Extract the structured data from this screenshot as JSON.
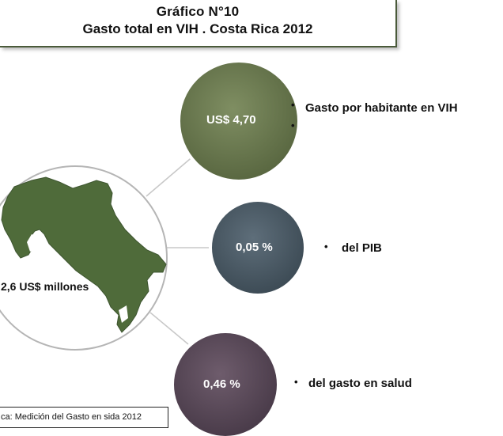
{
  "title": {
    "line1": "Gráfico N°10",
    "line2": "Gasto total en VIH . Costa Rica 2012"
  },
  "center": {
    "value": "2,6 US$ millones",
    "map": "costa-rica-map",
    "map_color": "#4f6b3a",
    "circle_border": "#b5b5b5"
  },
  "bubbles": [
    {
      "value": "US$   4,70",
      "description": "Gasto por habitante en VIH",
      "color": "#6b7a50"
    },
    {
      "value": "0,05  %",
      "description": "del PIB",
      "color": "#4a5a66"
    },
    {
      "value": "0,46 %",
      "description": "del gasto en salud",
      "color": "#5a4a58"
    }
  ],
  "source": "ca:  Medición  del Gasto en sida 2012"
}
